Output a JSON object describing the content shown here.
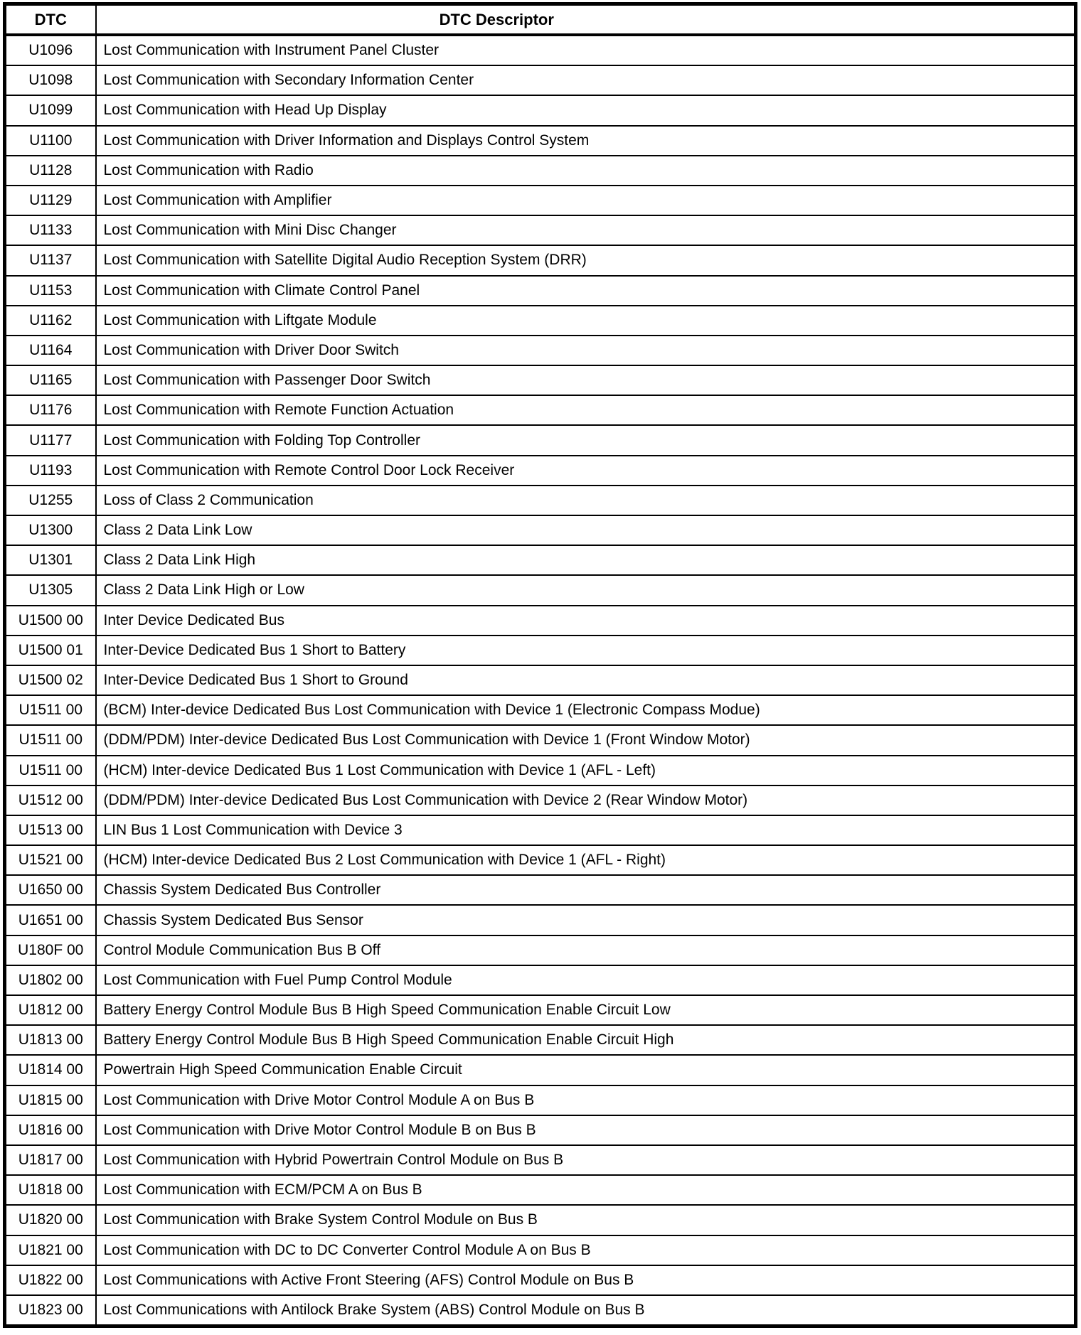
{
  "table": {
    "header": {
      "dtc": "DTC",
      "descriptor": "DTC Descriptor"
    },
    "rows": [
      {
        "code": "U1096",
        "descriptor": "Lost Communication with Instrument Panel Cluster"
      },
      {
        "code": "U1098",
        "descriptor": "Lost Communication with Secondary Information Center"
      },
      {
        "code": "U1099",
        "descriptor": "Lost Communication with Head Up Display"
      },
      {
        "code": "U1100",
        "descriptor": "Lost Communication with Driver Information and Displays Control System"
      },
      {
        "code": "U1128",
        "descriptor": "Lost Communication with Radio"
      },
      {
        "code": "U1129",
        "descriptor": "Lost Communication with Amplifier"
      },
      {
        "code": "U1133",
        "descriptor": "Lost Communication with Mini Disc Changer"
      },
      {
        "code": "U1137",
        "descriptor": "Lost Communication with Satellite Digital Audio Reception System (DRR)"
      },
      {
        "code": "U1153",
        "descriptor": "Lost Communication with Climate Control Panel"
      },
      {
        "code": "U1162",
        "descriptor": "Lost Communication with Liftgate Module"
      },
      {
        "code": "U1164",
        "descriptor": "Lost Communication with Driver Door Switch"
      },
      {
        "code": "U1165",
        "descriptor": "Lost Communication with Passenger Door Switch"
      },
      {
        "code": "U1176",
        "descriptor": "Lost Communication with Remote Function Actuation"
      },
      {
        "code": "U1177",
        "descriptor": "Lost Communication with Folding Top Controller"
      },
      {
        "code": "U1193",
        "descriptor": "Lost Communication with Remote Control Door Lock Receiver"
      },
      {
        "code": "U1255",
        "descriptor": "Loss of Class 2 Communication"
      },
      {
        "code": "U1300",
        "descriptor": "Class 2 Data Link Low"
      },
      {
        "code": "U1301",
        "descriptor": "Class 2 Data Link High"
      },
      {
        "code": "U1305",
        "descriptor": "Class 2 Data Link High or Low"
      },
      {
        "code": "U1500 00",
        "descriptor": "Inter Device Dedicated Bus"
      },
      {
        "code": "U1500 01",
        "descriptor": "Inter-Device Dedicated Bus 1 Short to Battery"
      },
      {
        "code": "U1500 02",
        "descriptor": "Inter-Device Dedicated Bus 1 Short to Ground"
      },
      {
        "code": "U1511 00",
        "descriptor": "(BCM) Inter-device Dedicated Bus Lost Communication with Device 1 (Electronic Compass Modue)"
      },
      {
        "code": "U1511 00",
        "descriptor": "(DDM/PDM) Inter-device Dedicated Bus Lost Communication with Device 1 (Front Window Motor)"
      },
      {
        "code": "U1511 00",
        "descriptor": "(HCM) Inter-device Dedicated Bus 1 Lost Communication with Device 1 (AFL - Left)"
      },
      {
        "code": "U1512 00",
        "descriptor": "(DDM/PDM) Inter-device Dedicated Bus Lost Communication with Device 2 (Rear Window Motor)"
      },
      {
        "code": "U1513 00",
        "descriptor": "LIN Bus 1 Lost Communication with Device 3"
      },
      {
        "code": "U1521 00",
        "descriptor": "(HCM) Inter-device Dedicated Bus 2 Lost Communication with Device 1 (AFL - Right)"
      },
      {
        "code": "U1650 00",
        "descriptor": "Chassis System Dedicated Bus Controller"
      },
      {
        "code": "U1651 00",
        "descriptor": "Chassis System Dedicated Bus Sensor"
      },
      {
        "code": "U180F 00",
        "descriptor": "Control Module Communication Bus B Off"
      },
      {
        "code": "U1802 00",
        "descriptor": "Lost Communication with Fuel Pump Control Module"
      },
      {
        "code": "U1812 00",
        "descriptor": "Battery Energy Control Module Bus B High Speed Communication Enable Circuit Low"
      },
      {
        "code": "U1813 00",
        "descriptor": "Battery Energy Control Module Bus B High Speed Communication Enable Circuit High"
      },
      {
        "code": "U1814 00",
        "descriptor": "Powertrain High Speed Communication Enable Circuit"
      },
      {
        "code": "U1815 00",
        "descriptor": "Lost Communication with Drive Motor Control Module A on Bus B"
      },
      {
        "code": "U1816 00",
        "descriptor": "Lost Communication with Drive Motor Control Module B on Bus B"
      },
      {
        "code": "U1817 00",
        "descriptor": "Lost Communication with Hybrid Powertrain Control Module on Bus B"
      },
      {
        "code": "U1818 00",
        "descriptor": "Lost Communication with ECM/PCM A on Bus B"
      },
      {
        "code": "U1820 00",
        "descriptor": "Lost Communication with Brake System Control Module on Bus B"
      },
      {
        "code": "U1821 00",
        "descriptor": "Lost Communication with DC to DC Converter Control Module A on Bus B"
      },
      {
        "code": "U1822 00",
        "descriptor": "Lost Communications with Active Front Steering (AFS) Control Module on Bus B"
      },
      {
        "code": "U1823 00",
        "descriptor": "Lost Communications with Antilock Brake System (ABS) Control Module on Bus B"
      }
    ]
  }
}
